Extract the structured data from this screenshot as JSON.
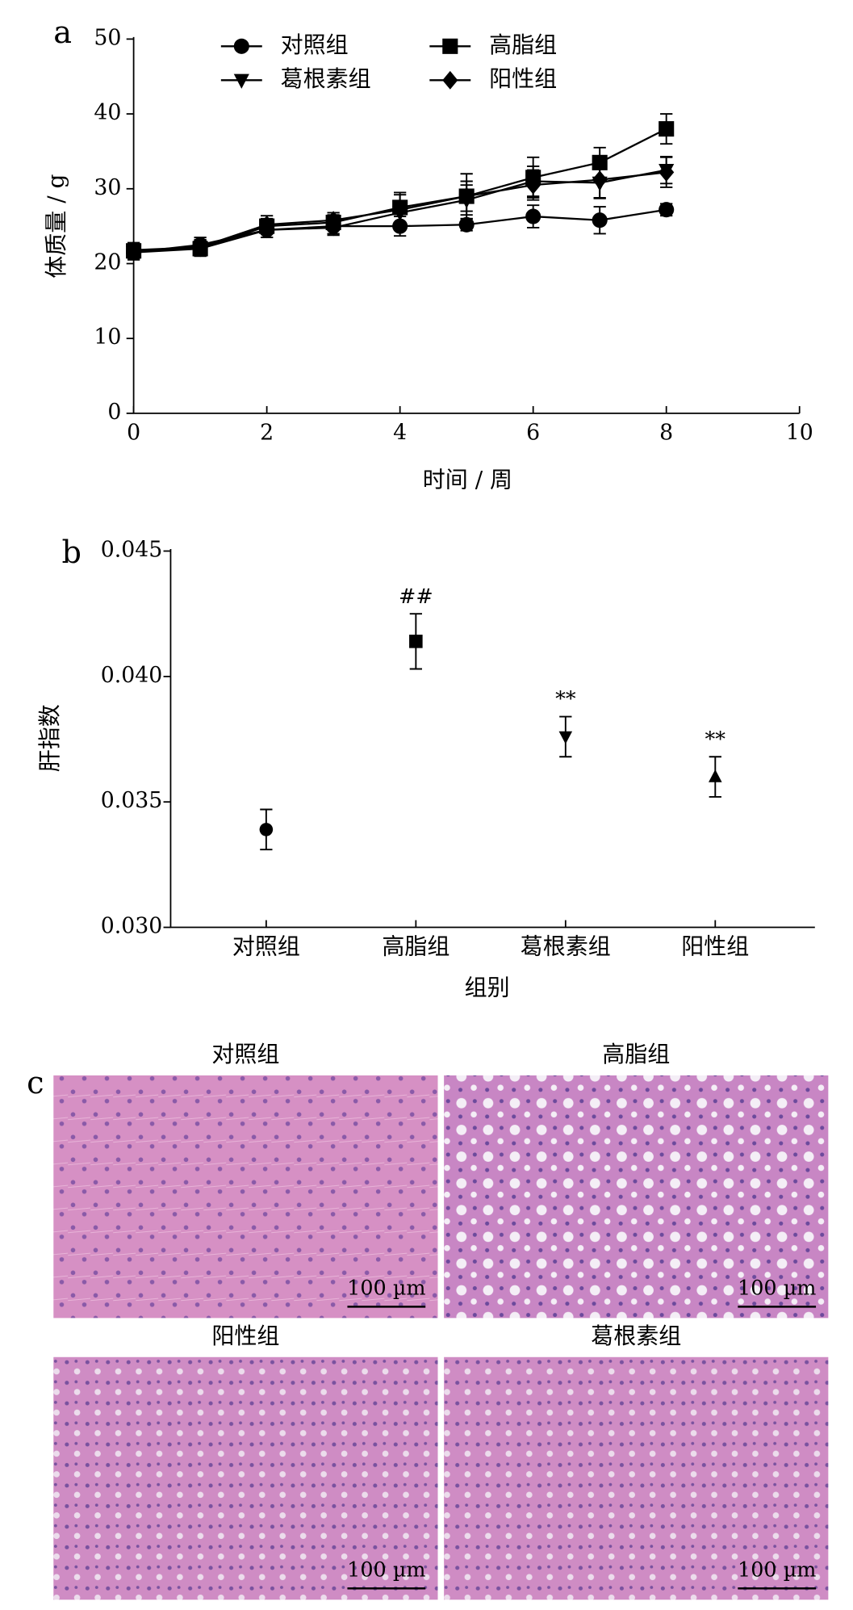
{
  "chart_data": [
    {
      "type": "line",
      "label": "a",
      "xlabel": "时间 / 周",
      "ylabel": "体质量 / g",
      "x": [
        0,
        1,
        2,
        3,
        4,
        5,
        6,
        7,
        8
      ],
      "xlim": [
        0,
        10
      ],
      "xticks": [
        0,
        2,
        4,
        6,
        8,
        10
      ],
      "ylim": [
        0,
        50
      ],
      "yticks": [
        0,
        10,
        20,
        30,
        40,
        50
      ],
      "series": [
        {
          "name": "对照组",
          "color": "#000",
          "marker": "circle",
          "values": [
            21.5,
            22.5,
            24.5,
            25,
            25,
            25.2,
            26.3,
            25.8,
            27.2
          ],
          "errors": [
            0.8,
            1,
            1,
            1,
            1.3,
            0.8,
            1.5,
            1.8,
            0.8
          ]
        },
        {
          "name": "高脂组",
          "color": "#000",
          "marker": "square",
          "values": [
            21.7,
            22,
            25,
            25.5,
            27.5,
            29,
            31.5,
            33.5,
            38
          ],
          "errors": [
            1,
            1,
            1,
            1,
            2,
            3,
            2.7,
            2,
            2
          ]
        },
        {
          "name": "葛根素组",
          "color": "#000",
          "marker": "triangle-down",
          "values": [
            21.5,
            22,
            24.5,
            24.8,
            26.8,
            28.5,
            31,
            30.8,
            32.5
          ],
          "errors": [
            1,
            1,
            1,
            1,
            1.5,
            2,
            2,
            2,
            1.8
          ]
        },
        {
          "name": "阳性组",
          "color": "#000",
          "marker": "diamond",
          "values": [
            21.8,
            22.2,
            25.2,
            25.8,
            27.2,
            29,
            30.5,
            31.2,
            32.2
          ],
          "errors": [
            1,
            1,
            1.2,
            1,
            2,
            2,
            2,
            2.5,
            2
          ]
        }
      ]
    },
    {
      "type": "dot",
      "label": "b",
      "xlabel": "组别",
      "ylabel": "肝指数",
      "categories": [
        "对照组",
        "高脂组",
        "葛根素组",
        "阳性组"
      ],
      "values": [
        0.0339,
        0.0414,
        0.0376,
        0.036
      ],
      "errors": [
        0.0008,
        0.0011,
        0.0008,
        0.0008
      ],
      "markers": [
        "circle",
        "square",
        "triangle-down",
        "triangle-up"
      ],
      "color": "#000",
      "ylim": [
        0.03,
        0.045
      ],
      "yticks": [
        {
          "value": 0.03,
          "label": "0.030"
        },
        {
          "value": 0.035,
          "label": "0.035"
        },
        {
          "value": 0.04,
          "label": "0.040"
        },
        {
          "value": 0.045,
          "label": "0.045"
        }
      ],
      "annotations": [
        {
          "category": "高脂组",
          "text": "##"
        },
        {
          "category": "葛根素组",
          "text": "**"
        },
        {
          "category": "阳性组",
          "text": "**"
        }
      ]
    }
  ],
  "figure_c": {
    "label": "c",
    "images": [
      {
        "title": "对照组",
        "scale_bar": "100 µm"
      },
      {
        "title": "高脂组",
        "scale_bar": "100 µm"
      },
      {
        "title": "阳性组",
        "scale_bar": "100 µm"
      },
      {
        "title": "葛根素组",
        "scale_bar": "100 µm"
      }
    ]
  }
}
